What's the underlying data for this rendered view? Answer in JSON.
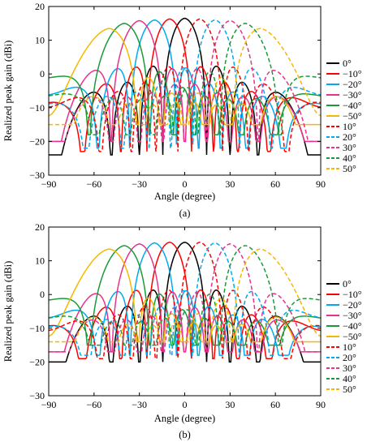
{
  "chart_data": [
    {
      "panel": "(a)",
      "type": "line",
      "xlabel": "Angle (degree)",
      "ylabel": "Realized peak gain (dBi)",
      "xlim": [
        -90,
        90
      ],
      "ylim": [
        -30,
        20
      ],
      "xticks": [
        -90,
        -60,
        -30,
        0,
        30,
        60,
        90
      ],
      "yticks": [
        -30,
        -20,
        -10,
        0,
        10,
        20
      ],
      "xtick_labels": [
        "−90",
        "−60",
        "−30",
        "0",
        "30",
        "60",
        "90"
      ],
      "ytick_labels": [
        "−30",
        "−20",
        "−10",
        "0",
        "10",
        "20"
      ],
      "grid": false,
      "legend_position": "right",
      "series": [
        {
          "name": "0°",
          "color": "#000000",
          "dash": "solid",
          "scan": 0,
          "peak": 16.5,
          "sidelobe": 2.5,
          "floor": -18
        },
        {
          "name": "−10°",
          "color": "#ff0000",
          "dash": "solid",
          "scan": -10,
          "peak": 16.3,
          "sidelobe": 1.5,
          "floor": -17
        },
        {
          "name": "−20°",
          "color": "#00aaee",
          "dash": "solid",
          "scan": -20,
          "peak": 16.0,
          "sidelobe": 0.5,
          "floor": -16
        },
        {
          "name": "−30°",
          "color": "#e8328c",
          "dash": "solid",
          "scan": -30,
          "peak": 15.8,
          "sidelobe": 0.0,
          "floor": -14
        },
        {
          "name": "−40°",
          "color": "#1a9a3a",
          "dash": "solid",
          "scan": -40,
          "peak": 15.0,
          "sidelobe": -1.0,
          "floor": -12
        },
        {
          "name": "−50°",
          "color": "#f5b800",
          "dash": "solid",
          "scan": -50,
          "peak": 13.5,
          "sidelobe": -2.0,
          "floor": -9
        },
        {
          "name": "10°",
          "color": "#ff0000",
          "dash": "dashed",
          "scan": 10,
          "peak": 16.3,
          "sidelobe": 1.5,
          "floor": -17
        },
        {
          "name": "20°",
          "color": "#00aaee",
          "dash": "dashed",
          "scan": 20,
          "peak": 16.0,
          "sidelobe": 0.5,
          "floor": -16
        },
        {
          "name": "30°",
          "color": "#e8328c",
          "dash": "dashed",
          "scan": 30,
          "peak": 15.8,
          "sidelobe": 0.0,
          "floor": -14
        },
        {
          "name": "40°",
          "color": "#1a9a3a",
          "dash": "dashed",
          "scan": 40,
          "peak": 15.0,
          "sidelobe": -1.0,
          "floor": -12
        },
        {
          "name": "50°",
          "color": "#f5b800",
          "dash": "dashed",
          "scan": 50,
          "peak": 13.5,
          "sidelobe": -2.0,
          "floor": -9
        }
      ]
    },
    {
      "panel": "(b)",
      "type": "line",
      "xlabel": "Angle (degree)",
      "ylabel": "Realized peak gain (dBi)",
      "xlim": [
        -90,
        90
      ],
      "ylim": [
        -30,
        20
      ],
      "xticks": [
        -90,
        -60,
        -30,
        0,
        30,
        60,
        90
      ],
      "yticks": [
        -30,
        -20,
        -10,
        0,
        10,
        20
      ],
      "xtick_labels": [
        "−90",
        "−60",
        "−30",
        "0",
        "30",
        "60",
        "90"
      ],
      "ytick_labels": [
        "−30",
        "−20",
        "−10",
        "0",
        "10",
        "20"
      ],
      "grid": false,
      "legend_position": "right",
      "series": [
        {
          "name": "0°",
          "color": "#000000",
          "dash": "solid",
          "scan": 0,
          "peak": 15.5,
          "sidelobe": 2.0,
          "floor": -14
        },
        {
          "name": "−10°",
          "color": "#ff0000",
          "dash": "solid",
          "scan": -10,
          "peak": 15.5,
          "sidelobe": 1.5,
          "floor": -13
        },
        {
          "name": "−20°",
          "color": "#00aaee",
          "dash": "solid",
          "scan": -20,
          "peak": 15.3,
          "sidelobe": 1.0,
          "floor": -12
        },
        {
          "name": "−30°",
          "color": "#e8328c",
          "dash": "solid",
          "scan": -30,
          "peak": 15.0,
          "sidelobe": 0.5,
          "floor": -11
        },
        {
          "name": "−40°",
          "color": "#1a9a3a",
          "dash": "solid",
          "scan": -40,
          "peak": 14.5,
          "sidelobe": 0.0,
          "floor": -9
        },
        {
          "name": "−50°",
          "color": "#f5b800",
          "dash": "solid",
          "scan": -50,
          "peak": 13.5,
          "sidelobe": -1.0,
          "floor": -8
        },
        {
          "name": "10°",
          "color": "#ff0000",
          "dash": "dashed",
          "scan": 10,
          "peak": 15.5,
          "sidelobe": 1.5,
          "floor": -13
        },
        {
          "name": "20°",
          "color": "#00aaee",
          "dash": "dashed",
          "scan": 20,
          "peak": 15.3,
          "sidelobe": 1.0,
          "floor": -12
        },
        {
          "name": "30°",
          "color": "#e8328c",
          "dash": "dashed",
          "scan": 30,
          "peak": 15.0,
          "sidelobe": 0.5,
          "floor": -11
        },
        {
          "name": "40°",
          "color": "#1a9a3a",
          "dash": "dashed",
          "scan": 40,
          "peak": 14.5,
          "sidelobe": 0.0,
          "floor": -9
        },
        {
          "name": "50°",
          "color": "#f5b800",
          "dash": "dashed",
          "scan": 50,
          "peak": 13.5,
          "sidelobe": -1.0,
          "floor": -8
        }
      ]
    }
  ]
}
